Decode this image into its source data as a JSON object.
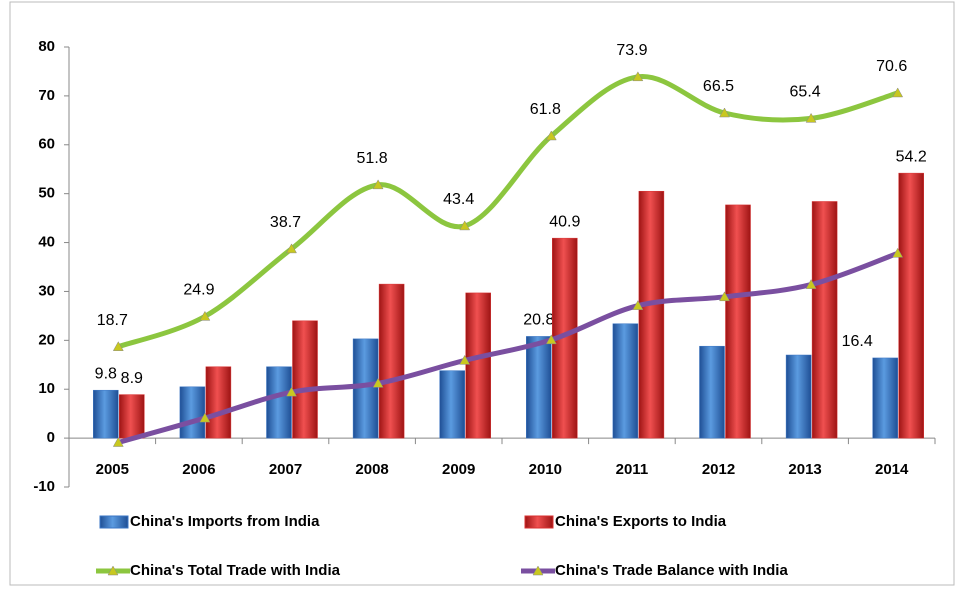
{
  "chart_data": {
    "type": "bar-line",
    "categories": [
      "2005",
      "2006",
      "2007",
      "2008",
      "2009",
      "2010",
      "2011",
      "2012",
      "2013",
      "2014"
    ],
    "ylim": [
      -10,
      80
    ],
    "yticks": [
      -10,
      0,
      10,
      20,
      30,
      40,
      50,
      60,
      70,
      80
    ],
    "grid": false,
    "series": [
      {
        "name": "China's Imports from India",
        "type": "bar",
        "color": "#3a75c4",
        "values": [
          9.8,
          10.5,
          14.6,
          20.3,
          13.8,
          20.8,
          23.4,
          18.8,
          17.0,
          16.4
        ],
        "value_labels": [
          "9.8",
          null,
          null,
          null,
          null,
          "20.8",
          null,
          null,
          null,
          "16.4"
        ]
      },
      {
        "name": "China's Exports to India",
        "type": "bar",
        "color": "#d83030",
        "values": [
          8.9,
          14.6,
          24.0,
          31.5,
          29.7,
          40.9,
          50.5,
          47.7,
          48.4,
          54.2
        ],
        "value_labels": [
          "8.9",
          null,
          null,
          null,
          null,
          "40.9",
          null,
          null,
          null,
          "54.2"
        ]
      },
      {
        "name": "China's Total Trade with India",
        "type": "line",
        "color": "#8cc63f",
        "marker_color": "#c8c820",
        "values": [
          18.7,
          24.9,
          38.7,
          51.8,
          43.4,
          61.8,
          73.9,
          66.5,
          65.4,
          70.6
        ],
        "value_labels": [
          "18.7",
          "24.9",
          "38.7",
          "51.8",
          "43.4",
          "61.8",
          "73.9",
          "66.5",
          "65.4",
          "70.6"
        ]
      },
      {
        "name": "China's Trade Balance with India",
        "type": "line",
        "color": "#7a4fa0",
        "marker_color": "#c8c820",
        "values": [
          -0.9,
          4.1,
          9.4,
          11.2,
          15.9,
          20.1,
          27.1,
          28.9,
          31.4,
          37.8
        ]
      }
    ]
  }
}
